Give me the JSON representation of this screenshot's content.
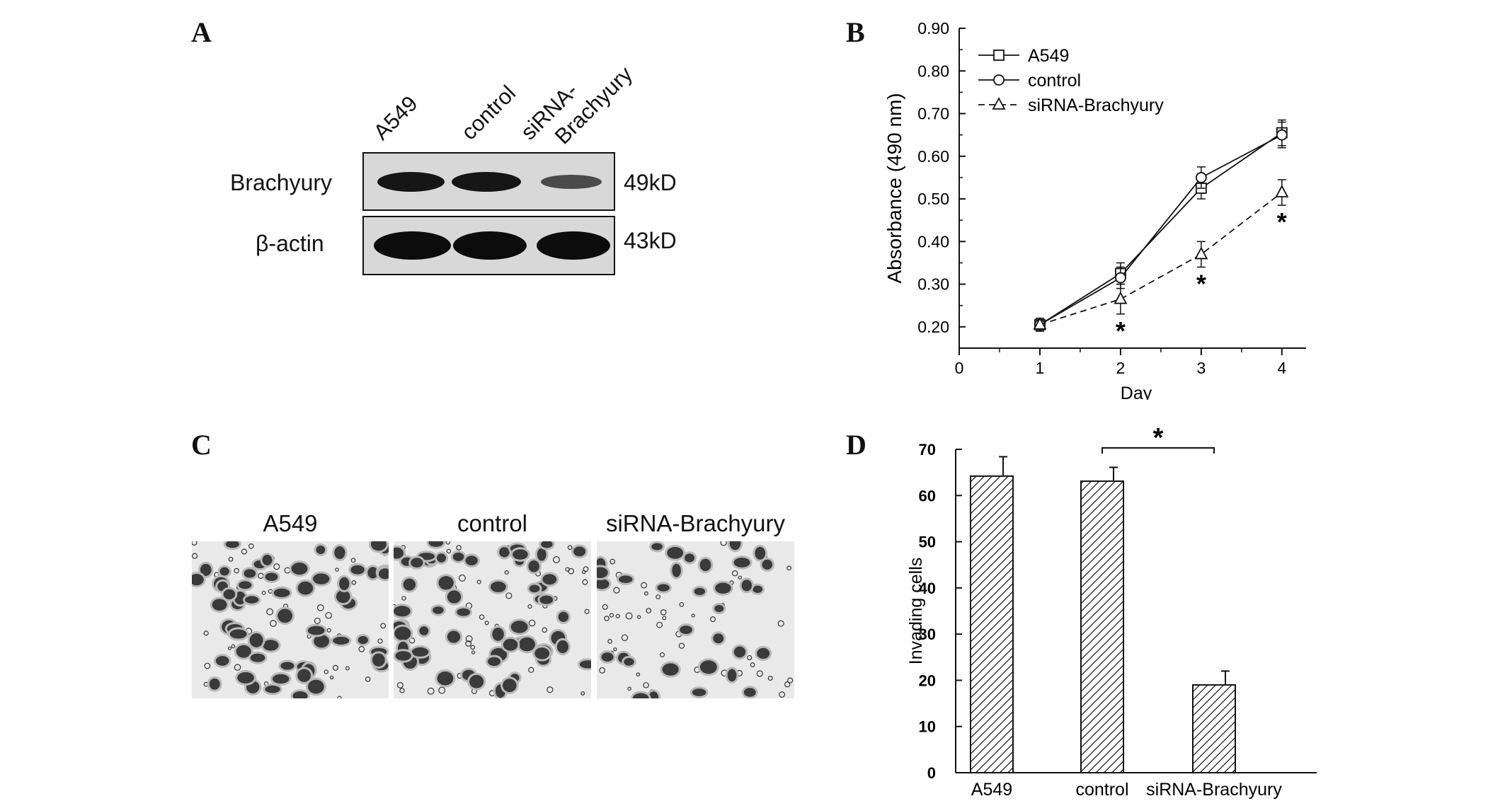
{
  "panels": {
    "a": {
      "letter": "A",
      "lanes": [
        "A549",
        "control",
        "siRNA-\nBrachyury"
      ],
      "lane_line1": [
        "A549",
        "control",
        "siRNA-"
      ],
      "lane_line2": [
        "",
        "",
        "Brachyury"
      ],
      "rows": [
        {
          "label": "Brachyury",
          "size": "49kD",
          "band_intensity": [
            0.95,
            0.95,
            0.45
          ]
        },
        {
          "label": "β-actin",
          "size": "43kD",
          "band_intensity": [
            1.0,
            1.0,
            1.0
          ]
        }
      ]
    },
    "b": {
      "letter": "B"
    },
    "c": {
      "letter": "C",
      "images": [
        {
          "label": "A549",
          "density": 1.0
        },
        {
          "label": "control",
          "density": 1.0
        },
        {
          "label": "siRNA-Brachyury",
          "density": 0.55
        }
      ]
    },
    "d": {
      "letter": "D",
      "significance_marker": "*"
    }
  },
  "chart_data": [
    {
      "type": "line",
      "xlabel": "Day",
      "ylabel": "Absorbance (490 nm)",
      "xlim": [
        0,
        4.3
      ],
      "ylim": [
        0.15,
        0.9
      ],
      "xticks": [
        0,
        1,
        2,
        3,
        4
      ],
      "yticks": [
        0.2,
        0.3,
        0.4,
        0.5,
        0.6,
        0.7,
        0.8,
        0.9
      ],
      "ytick_labels": [
        "0.20",
        "0.30",
        "0.40",
        "0.50",
        "0.60",
        "0.70",
        "0.80",
        "0.90"
      ],
      "legend_position": "top-left",
      "x": [
        1,
        2,
        3,
        4
      ],
      "series": [
        {
          "name": "A549",
          "marker": "square",
          "dash": false,
          "values": [
            0.205,
            0.325,
            0.525,
            0.655
          ],
          "errors": [
            0.015,
            0.025,
            0.025,
            0.03
          ]
        },
        {
          "name": "control",
          "marker": "circle",
          "dash": false,
          "values": [
            0.205,
            0.315,
            0.55,
            0.65
          ],
          "errors": [
            0.015,
            0.025,
            0.025,
            0.03
          ]
        },
        {
          "name": "siRNA-Brachyury",
          "marker": "triangle",
          "dash": true,
          "values": [
            0.205,
            0.265,
            0.37,
            0.515
          ],
          "errors": [
            0.015,
            0.035,
            0.03,
            0.03
          ]
        }
      ],
      "annotations": [
        {
          "x": 2,
          "text": "*"
        },
        {
          "x": 3,
          "text": "*"
        },
        {
          "x": 4,
          "text": "*"
        }
      ]
    },
    {
      "type": "bar",
      "categories": [
        "A549",
        "control",
        "siRNA-Brachyury"
      ],
      "values": [
        64.2,
        63.1,
        19
      ],
      "errors": [
        4.2,
        3,
        3
      ],
      "ylabel": "Invading cells",
      "ylim": [
        0,
        70
      ],
      "yticks": [
        0,
        10,
        20,
        30,
        40,
        50,
        60,
        70
      ],
      "bar_fill": "hatched",
      "significance": {
        "from": "control",
        "to": "siRNA-Brachyury",
        "text": "*"
      }
    }
  ]
}
